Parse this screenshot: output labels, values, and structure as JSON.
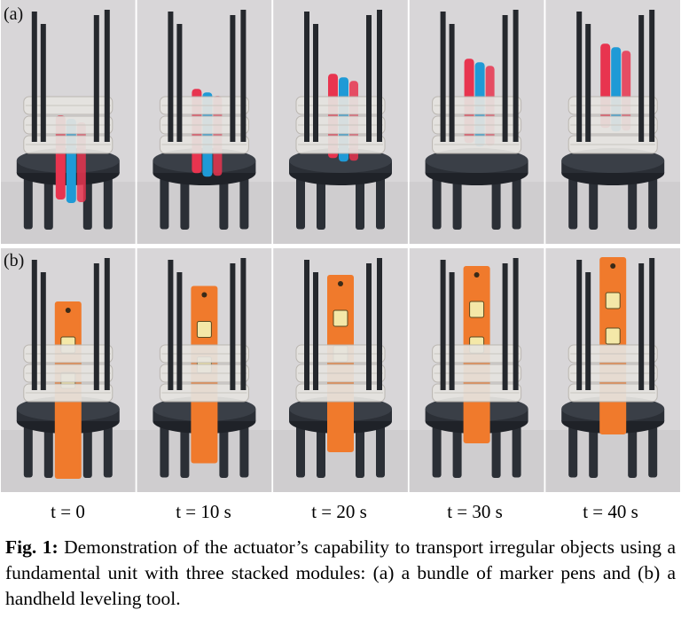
{
  "figure": {
    "row_labels": [
      "(a)",
      "(b)"
    ],
    "panel_count": 5,
    "colors": {
      "background": "#d8d6d8",
      "base": "#2b2f36",
      "rods": "#25282d",
      "modules": "#e6e4e0",
      "pen_red": "#e8344f",
      "pen_blue": "#1f9ad6",
      "level_tool": "#f07a2c"
    },
    "pens_progress": [
      0.0,
      0.35,
      0.55,
      0.75,
      0.95
    ],
    "level_progress": [
      0.0,
      0.35,
      0.6,
      0.8,
      1.0
    ]
  },
  "time_labels": [
    "t = 0",
    "t = 10 s",
    "t = 20 s",
    "t = 30 s",
    "t = 40 s"
  ],
  "caption": {
    "label": "Fig. 1:",
    "text": " Demonstration of the actuator’s capability to transport irregular objects using a fundamental unit with three stacked modules: (a) a bundle of marker pens and (b) a handheld leveling tool."
  }
}
